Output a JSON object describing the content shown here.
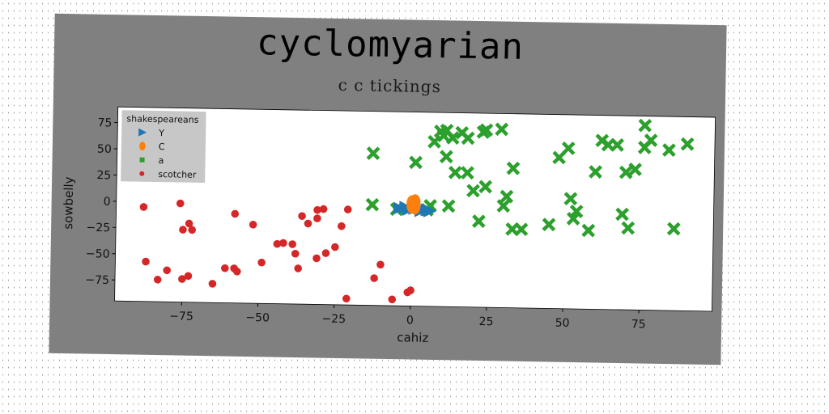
{
  "chart_data": {
    "type": "scatter",
    "title": "cyclomyarian",
    "subtitle": "c c tickings",
    "xlabel": "cahiz",
    "ylabel": "sowbelly",
    "xlim": [
      -97,
      99
    ],
    "ylim": [
      -95,
      90
    ],
    "xticks": [
      -75,
      -50,
      -25,
      0,
      25,
      50,
      75
    ],
    "yticks": [
      -75,
      -50,
      -25,
      0,
      25,
      50,
      75
    ],
    "grid": false,
    "legend": {
      "title": "shakespeareans",
      "placement": "top-left"
    },
    "series": [
      {
        "name": "Y",
        "marker": "triangle-right",
        "color": "#1f77b4",
        "points": [
          [
            -4,
            -2
          ],
          [
            -1,
            -3
          ],
          [
            1,
            -2
          ],
          [
            3,
            -4
          ],
          [
            5,
            -3
          ],
          [
            6,
            -4
          ],
          [
            -2,
            -1
          ],
          [
            2,
            -1
          ]
        ]
      },
      {
        "name": "C",
        "marker": "ellipse",
        "color": "#ff7f0e",
        "points": [
          [
            0,
            3
          ],
          [
            0,
            1
          ],
          [
            1,
            4
          ],
          [
            1,
            0
          ]
        ]
      },
      {
        "name": "a",
        "marker": "x",
        "color": "#2ca02c",
        "points": [
          [
            9,
            72
          ],
          [
            11,
            73
          ],
          [
            16,
            71
          ],
          [
            18,
            66
          ],
          [
            23,
            72
          ],
          [
            24,
            74
          ],
          [
            29,
            75
          ],
          [
            10,
            68
          ],
          [
            13,
            66
          ],
          [
            7,
            62
          ],
          [
            1,
            42
          ],
          [
            -13,
            50
          ],
          [
            11,
            48
          ],
          [
            14,
            33
          ],
          [
            18,
            33
          ],
          [
            33,
            38
          ],
          [
            20,
            16
          ],
          [
            24,
            20
          ],
          [
            12,
            1
          ],
          [
            31,
            11
          ],
          [
            6,
            1
          ],
          [
            -13,
            1
          ],
          [
            -5,
            -3
          ],
          [
            5,
            -3
          ],
          [
            22,
            -13
          ],
          [
            33,
            -20
          ],
          [
            36,
            -20
          ],
          [
            30,
            2
          ],
          [
            45,
            -15
          ],
          [
            48,
            49
          ],
          [
            51,
            58
          ],
          [
            52,
            10
          ],
          [
            54,
            -2
          ],
          [
            53,
            -9
          ],
          [
            58,
            -20
          ],
          [
            60,
            36
          ],
          [
            62,
            66
          ],
          [
            64,
            62
          ],
          [
            67,
            62
          ],
          [
            70,
            36
          ],
          [
            73,
            39
          ],
          [
            69,
            -4
          ],
          [
            71,
            -17
          ],
          [
            76,
            81
          ],
          [
            76,
            60
          ],
          [
            78,
            67
          ],
          [
            84,
            58
          ],
          [
            86,
            -17
          ],
          [
            90,
            64
          ]
        ]
      },
      {
        "name": "scotcher",
        "marker": "circle",
        "color": "#d62728",
        "points": [
          [
            -88,
            -5
          ],
          [
            -76,
            -1
          ],
          [
            -75,
            -26
          ],
          [
            -73,
            -20
          ],
          [
            -72,
            -26
          ],
          [
            -87,
            -57
          ],
          [
            -80,
            -65
          ],
          [
            -83,
            -74
          ],
          [
            -75,
            -73
          ],
          [
            -73,
            -70
          ],
          [
            -61,
            -62
          ],
          [
            -58,
            -10
          ],
          [
            -58,
            -62
          ],
          [
            -57,
            -65
          ],
          [
            -65,
            -77
          ],
          [
            -52,
            -20
          ],
          [
            -49,
            -56
          ],
          [
            -44,
            -38
          ],
          [
            -42,
            -37
          ],
          [
            -39,
            -38
          ],
          [
            -38,
            -47
          ],
          [
            -37,
            -61
          ],
          [
            -36,
            -11
          ],
          [
            -34,
            -18
          ],
          [
            -31,
            -13
          ],
          [
            -31,
            -5
          ],
          [
            -29,
            -4
          ],
          [
            -31,
            -51
          ],
          [
            -28,
            -46
          ],
          [
            -25,
            -40
          ],
          [
            -23,
            -20
          ],
          [
            -21,
            -4
          ],
          [
            -21,
            -89
          ],
          [
            -12,
            -69
          ],
          [
            -10,
            -56
          ],
          [
            -6,
            -89
          ],
          [
            -1,
            -82
          ],
          [
            0,
            -80
          ]
        ]
      }
    ]
  }
}
